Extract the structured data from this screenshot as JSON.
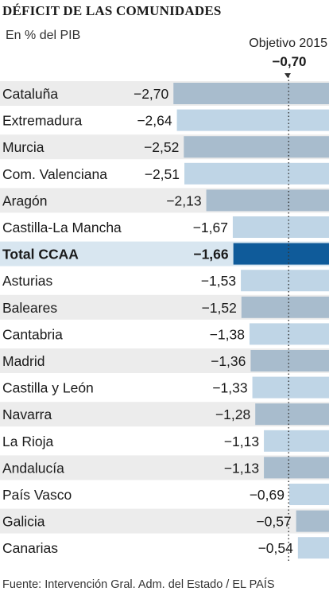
{
  "title": "DÉFICIT DE LAS COMUNIDADES",
  "subtitle": "En % del PIB",
  "target": {
    "label": "Objetivo 2015",
    "value_label": "−0,70",
    "value": -0.7
  },
  "source": "Fuente: Intervención Gral. Adm. del Estado / EL PAÍS",
  "colors": {
    "band": "#ececec",
    "bar_light": "#bfd5e6",
    "bar_dark": "#a8bccd",
    "highlight_band": "#d8e6f0",
    "highlight_bar": "#0f5b9a",
    "dots": "#333333"
  },
  "chart_data": {
    "type": "bar",
    "title": "DÉFICIT DE LAS COMUNIDADES",
    "unit": "En % del PIB",
    "categories": [
      "Cataluña",
      "Extremadura",
      "Murcia",
      "Com. Valenciana",
      "Aragón",
      "Castilla-La Mancha",
      "Total CCAA",
      "Asturias",
      "Baleares",
      "Cantabria",
      "Madrid",
      "Castilla y León",
      "Navarra",
      "La Rioja",
      "Andalucía",
      "País Vasco",
      "Galicia",
      "Canarias"
    ],
    "values": [
      -2.7,
      -2.64,
      -2.52,
      -2.51,
      -2.13,
      -1.67,
      -1.66,
      -1.53,
      -1.52,
      -1.38,
      -1.36,
      -1.33,
      -1.28,
      -1.13,
      -1.13,
      -0.69,
      -0.57,
      -0.54
    ],
    "value_labels": [
      "−2,70",
      "−2,64",
      "−2,52",
      "−2,51",
      "−2,13",
      "−1,67",
      "−1,66",
      "−1,53",
      "−1,52",
      "−1,38",
      "−1,36",
      "−1,33",
      "−1,28",
      "−1,13",
      "−1,13",
      "−0,69",
      "−0,57",
      "−0,54"
    ],
    "highlight": "Total CCAA",
    "reference_line": {
      "label": "Objetivo 2015",
      "value": -0.7
    }
  }
}
